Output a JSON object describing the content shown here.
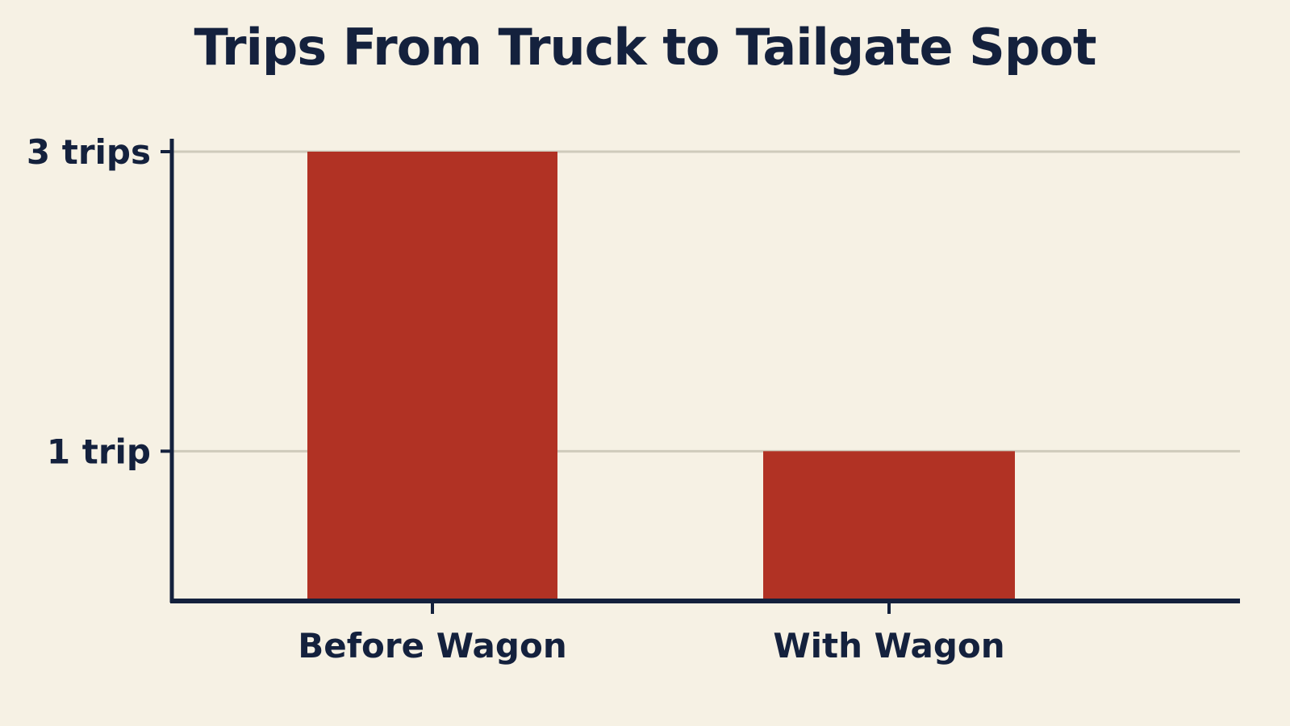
{
  "chart_data": {
    "type": "bar",
    "title": "Trips From Truck to Tailgate Spot",
    "categories": [
      "Before Wagon",
      "With Wagon"
    ],
    "values": [
      3,
      1
    ],
    "xlabel": "",
    "ylabel": "",
    "ylim": [
      0,
      3
    ],
    "y_ticks": [
      {
        "value": 3,
        "label": "3 trips"
      },
      {
        "value": 1,
        "label": "1 trip"
      }
    ],
    "grid": true,
    "legend": "none",
    "colors": {
      "bar": "#b13224",
      "axis": "#14213d",
      "grid": "#cfcbbb",
      "background": "#f6f1e4",
      "text": "#14213d"
    }
  }
}
